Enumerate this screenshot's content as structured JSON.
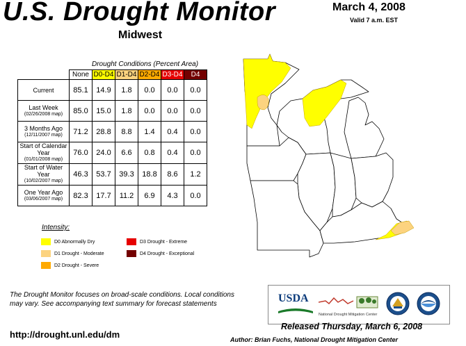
{
  "header": {
    "title": "U.S. Drought Monitor",
    "region": "Midwest",
    "date": "March 4, 2008",
    "valid": "Valid 7 a.m. EST"
  },
  "table": {
    "caption": "Drought Conditions (Percent Area)",
    "columns": [
      "None",
      "D0-D4",
      "D1-D4",
      "D2-D4",
      "D3-D4",
      "D4"
    ],
    "column_colors": [
      "#ffffff",
      "#ffff00",
      "#fcd37f",
      "#ffaa00",
      "#e60000",
      "#730000"
    ],
    "rows": [
      {
        "label": "Current",
        "sub": "",
        "values": [
          "85.1",
          "14.9",
          "1.8",
          "0.0",
          "0.0",
          "0.0"
        ]
      },
      {
        "label": "Last Week",
        "sub": "(02/26/2008 map)",
        "values": [
          "85.0",
          "15.0",
          "1.8",
          "0.0",
          "0.0",
          "0.0"
        ]
      },
      {
        "label": "3 Months Ago",
        "sub": "(12/11/2007 map)",
        "values": [
          "71.2",
          "28.8",
          "8.8",
          "1.4",
          "0.4",
          "0.0"
        ]
      },
      {
        "label": "Start of Calendar Year",
        "sub": "(01/01/2008 map)",
        "values": [
          "76.0",
          "24.0",
          "6.6",
          "0.8",
          "0.4",
          "0.0"
        ]
      },
      {
        "label": "Start of Water Year",
        "sub": "(10/02/2007 map)",
        "values": [
          "46.3",
          "53.7",
          "39.3",
          "18.8",
          "8.6",
          "1.2"
        ]
      },
      {
        "label": "One Year Ago",
        "sub": "(03/06/2007 map)",
        "values": [
          "82.3",
          "17.7",
          "11.2",
          "6.9",
          "4.3",
          "0.0"
        ]
      }
    ]
  },
  "legend": {
    "title": "Intensity:",
    "items": [
      {
        "label": "D0 Abnormally Dry",
        "color": "#ffff00"
      },
      {
        "label": "D1 Drought - Moderate",
        "color": "#fcd37f"
      },
      {
        "label": "D2 Drought - Severe",
        "color": "#ffaa00"
      },
      {
        "label": "D3 Drought - Extreme",
        "color": "#e60000"
      },
      {
        "label": "D4 Drought - Exceptional",
        "color": "#730000"
      }
    ]
  },
  "footnote": "The Drought Monitor focuses on broad-scale conditions. Local conditions may vary. See accompanying text summary for forecast statements",
  "url": "http://drought.unl.edu/dm",
  "logos": {
    "usda": "USDA",
    "ndmc": "National Drought Mitigation Center"
  },
  "released": "Released Thursday, March 6, 2008",
  "author": "Author: Brian Fuchs, National Drought Mitigation Center"
}
